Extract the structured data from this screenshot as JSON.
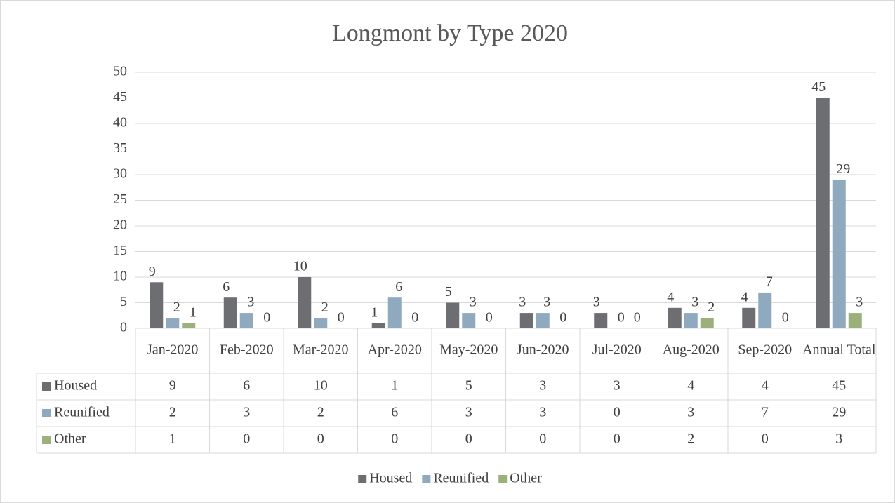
{
  "chart_data": {
    "type": "bar",
    "title": "Longmont by Type 2020",
    "categories": [
      "Jan-2020",
      "Feb-2020",
      "Mar-2020",
      "Apr-2020",
      "May-2020",
      "Jun-2020",
      "Jul-2020",
      "Aug-2020",
      "Sep-2020",
      "Annual Total"
    ],
    "series": [
      {
        "name": "Housed",
        "color": "#6d6e72",
        "values": [
          9,
          6,
          10,
          1,
          5,
          3,
          3,
          4,
          4,
          45
        ]
      },
      {
        "name": "Reunified",
        "color": "#8fa9bf",
        "values": [
          2,
          3,
          2,
          6,
          3,
          3,
          0,
          3,
          7,
          29
        ]
      },
      {
        "name": "Other",
        "color": "#9bb07a",
        "values": [
          1,
          0,
          0,
          0,
          0,
          0,
          0,
          2,
          0,
          3
        ]
      }
    ],
    "ylim": [
      0,
      50
    ],
    "yticks": [
      0,
      5,
      10,
      15,
      20,
      25,
      30,
      35,
      40,
      45,
      50
    ],
    "grid": true,
    "legend": "bottom",
    "data_table": true
  }
}
